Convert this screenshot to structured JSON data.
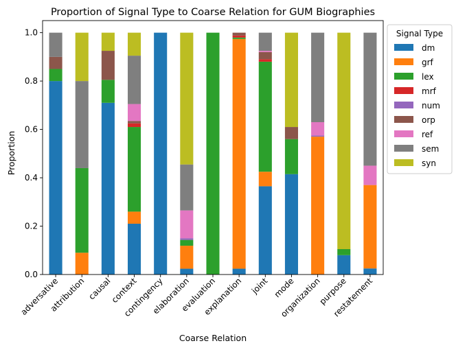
{
  "chart_data": {
    "type": "bar",
    "stacked": true,
    "title": "Proportion of Signal Type to Coarse Relation for GUM Biographies",
    "xlabel": "Coarse Relation",
    "ylabel": "Proportion",
    "ylim": [
      0,
      1.05
    ],
    "yticks": [
      "0.0",
      "0.2",
      "0.4",
      "0.6",
      "0.8",
      "1.0"
    ],
    "grid": false,
    "legend": {
      "title": "Signal Type",
      "placement": "outside-right"
    },
    "categories": [
      "adversative",
      "attribution",
      "causal",
      "context",
      "contingency",
      "elaboration",
      "evaluation",
      "explanation",
      "joint",
      "mode",
      "organization",
      "purpose",
      "restatement"
    ],
    "series": [
      {
        "name": "dm",
        "color": "#1f77b4",
        "values": [
          0.8,
          0.0,
          0.71,
          0.21,
          1.0,
          0.024,
          0.0,
          0.024,
          0.365,
          0.415,
          0.0,
          0.08,
          0.025
        ]
      },
      {
        "name": "grf",
        "color": "#ff7f0e",
        "values": [
          0.0,
          0.09,
          0.0,
          0.05,
          0.0,
          0.095,
          0.0,
          0.95,
          0.06,
          0.0,
          0.57,
          0.0,
          0.345
        ]
      },
      {
        "name": "lex",
        "color": "#2ca02c",
        "values": [
          0.05,
          0.35,
          0.095,
          0.35,
          0.0,
          0.024,
          1.0,
          0.006,
          0.455,
          0.145,
          0.0,
          0.025,
          0.0
        ]
      },
      {
        "name": "mrf",
        "color": "#d62728",
        "values": [
          0.0,
          0.0,
          0.0,
          0.015,
          0.0,
          0.0,
          0.0,
          0.008,
          0.01,
          0.0,
          0.0,
          0.0,
          0.0
        ]
      },
      {
        "name": "num",
        "color": "#9467bd",
        "values": [
          0.0,
          0.0,
          0.0,
          0.0,
          0.0,
          0.007,
          0.0,
          0.0,
          0.0,
          0.0,
          0.005,
          0.0,
          0.0
        ]
      },
      {
        "name": "orp",
        "color": "#8c564b",
        "values": [
          0.05,
          0.0,
          0.12,
          0.01,
          0.0,
          0.0,
          0.0,
          0.012,
          0.03,
          0.05,
          0.0,
          0.0,
          0.0
        ]
      },
      {
        "name": "ref",
        "color": "#e377c2",
        "values": [
          0.0,
          0.0,
          0.0,
          0.07,
          0.0,
          0.115,
          0.0,
          0.0,
          0.005,
          0.0,
          0.055,
          0.0,
          0.08
        ]
      },
      {
        "name": "sem",
        "color": "#7f7f7f",
        "values": [
          0.1,
          0.36,
          0.0,
          0.2,
          0.0,
          0.19,
          0.0,
          0.0,
          0.075,
          0.0,
          0.37,
          0.0,
          0.55
        ]
      },
      {
        "name": "syn",
        "color": "#bcbd22",
        "values": [
          0.0,
          0.2,
          0.075,
          0.095,
          0.0,
          0.545,
          0.0,
          0.0,
          0.0,
          0.39,
          0.0,
          0.895,
          0.0
        ]
      }
    ]
  }
}
